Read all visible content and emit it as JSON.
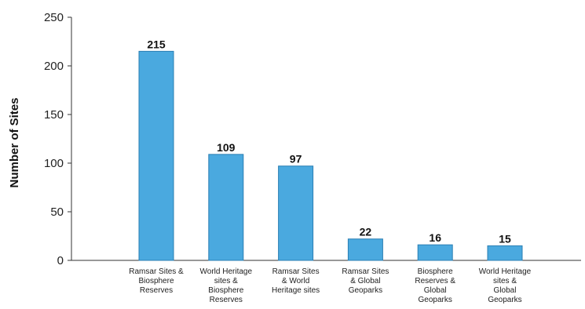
{
  "chart_data": {
    "type": "bar",
    "ylabel": "Number of Sites",
    "ylim": [
      0,
      250
    ],
    "yticks": [
      "0",
      "50",
      "100",
      "150",
      "200",
      "250"
    ],
    "categories": [
      [
        "Ramsar Sites &",
        "Biosphere",
        "Reserves"
      ],
      [
        "World Heritage",
        "sites &",
        "Biosphere",
        "Reserves"
      ],
      [
        "Ramsar Sites",
        "& World",
        "Heritage sites"
      ],
      [
        "Ramsar Sites",
        "& Global",
        "Geoparks"
      ],
      [
        "Biosphere",
        "Reserves &",
        "Global",
        "Geoparks"
      ],
      [
        "World Heritage",
        "sites &",
        "Global",
        "Geoparks"
      ]
    ],
    "values": [
      215,
      109,
      97,
      22,
      16,
      15
    ],
    "value_labels": [
      "215",
      "109",
      "97",
      "22",
      "16",
      "15"
    ],
    "bar_color": "#4aa9df",
    "bar_edge_color": "#2b7fb3",
    "grid": false,
    "legend": "none"
  }
}
